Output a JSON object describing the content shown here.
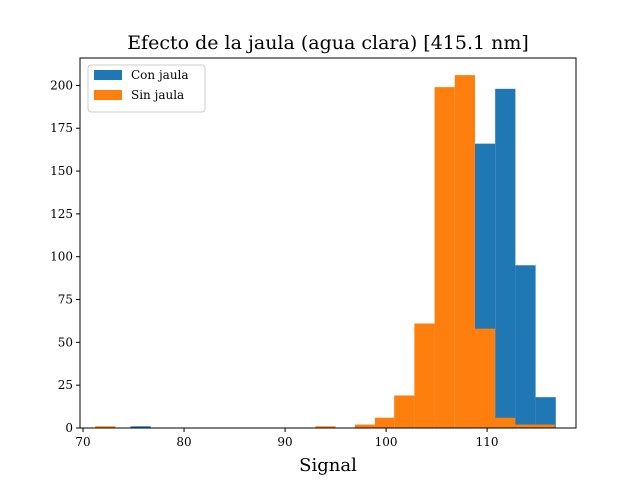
{
  "chart_data": {
    "type": "histogram",
    "title": "Efecto de la jaula (agua clara) [415.1 nm]",
    "xlabel": "Signal",
    "ylabel": "",
    "xlim": [
      69.7,
      118.8
    ],
    "ylim": [
      0,
      216
    ],
    "xticks": [
      70,
      80,
      90,
      100,
      110
    ],
    "yticks": [
      0,
      25,
      50,
      75,
      100,
      125,
      150,
      175,
      200
    ],
    "grid": false,
    "legend_position": "top-left",
    "series": [
      {
        "name": "Con jaula",
        "color": "#1f77b4",
        "bins": [
          {
            "x0": 74.7,
            "x1": 76.7,
            "count": 1
          },
          {
            "x0": 106.8,
            "x1": 108.8,
            "count": 1
          },
          {
            "x0": 108.8,
            "x1": 110.8,
            "count": 166
          },
          {
            "x0": 110.8,
            "x1": 112.8,
            "count": 198
          },
          {
            "x0": 112.8,
            "x1": 114.8,
            "count": 95
          },
          {
            "x0": 114.8,
            "x1": 116.8,
            "count": 18
          }
        ]
      },
      {
        "name": "Sin jaula",
        "color": "#ff7f0e",
        "bins": [
          {
            "x0": 71.2,
            "x1": 73.2,
            "count": 1
          },
          {
            "x0": 93.0,
            "x1": 95.0,
            "count": 1
          },
          {
            "x0": 96.9,
            "x1": 98.9,
            "count": 2
          },
          {
            "x0": 98.9,
            "x1": 100.8,
            "count": 6
          },
          {
            "x0": 100.8,
            "x1": 102.8,
            "count": 19
          },
          {
            "x0": 102.8,
            "x1": 104.8,
            "count": 61
          },
          {
            "x0": 104.8,
            "x1": 106.8,
            "count": 199
          },
          {
            "x0": 106.8,
            "x1": 108.8,
            "count": 206
          },
          {
            "x0": 108.8,
            "x1": 110.8,
            "count": 58
          },
          {
            "x0": 110.8,
            "x1": 112.8,
            "count": 6
          },
          {
            "x0": 112.8,
            "x1": 114.8,
            "count": 2
          },
          {
            "x0": 114.8,
            "x1": 116.7,
            "count": 2
          }
        ]
      }
    ]
  }
}
